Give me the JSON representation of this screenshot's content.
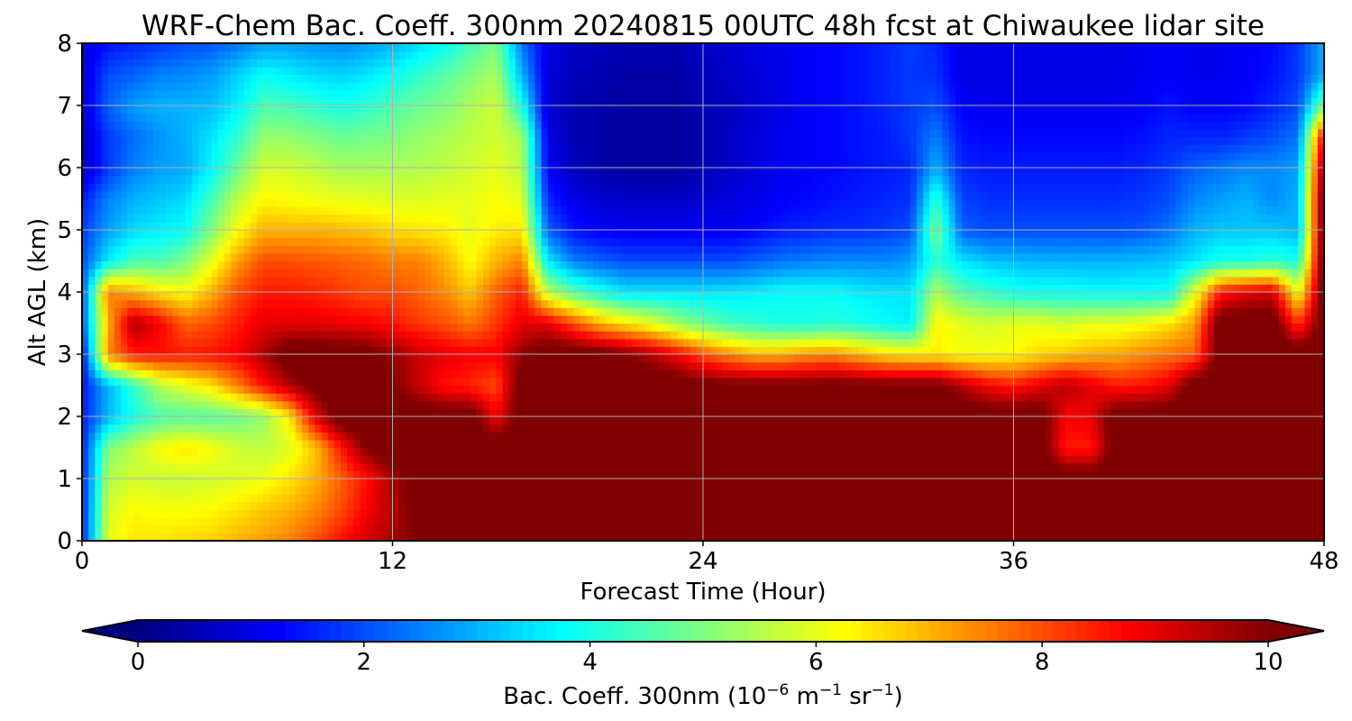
{
  "chart_data": {
    "type": "heatmap",
    "subtype": "filled-contour",
    "title": "WRF-Chem Bac. Coeff. 300nm  20240815 00UTC 48h fcst at Chiwaukee lidar site",
    "xlabel": "Forecast Time (Hour)",
    "ylabel": "Alt AGL (km)",
    "xlim": [
      0,
      48
    ],
    "ylim": [
      0,
      8
    ],
    "xticks": [
      "0",
      "12",
      "24",
      "36",
      "48"
    ],
    "yticks": [
      "0",
      "1",
      "2",
      "3",
      "4",
      "5",
      "6",
      "7",
      "8"
    ],
    "grid": true,
    "colormap": "jet",
    "colorbar": {
      "orientation": "horizontal",
      "placement": "bottom",
      "range": [
        0,
        10
      ],
      "extend": "both",
      "ticks": [
        "0",
        "2",
        "4",
        "6",
        "8",
        "10"
      ],
      "label_main": "Bac. Coeff. 300nm  (10",
      "label_exp1": "−6",
      "label_mid": " m",
      "label_exp2": "−1",
      "label_mid2": " sr",
      "label_exp3": "−1",
      "label_end": ")"
    },
    "x": [
      0,
      1,
      2,
      3,
      4,
      5,
      6,
      7,
      8,
      9,
      10,
      11,
      12,
      13,
      14,
      15,
      16,
      17,
      18,
      19,
      20,
      21,
      22,
      23,
      24,
      25,
      26,
      27,
      28,
      29,
      30,
      31,
      32,
      33,
      34,
      35,
      36,
      37,
      38,
      39,
      40,
      41,
      42,
      43,
      44,
      45,
      46,
      47,
      48
    ],
    "y": [
      0,
      0.5,
      1,
      1.5,
      2,
      2.5,
      3,
      3.5,
      4,
      4.5,
      5,
      5.5,
      6,
      6.5,
      7,
      7.5,
      8
    ],
    "values": [
      [
        1.5,
        6.0,
        6.5,
        6.5,
        6.6,
        6.7,
        7.0,
        7.2,
        7.5,
        8.0,
        8.6,
        9.2,
        9.6,
        10.0,
        10.5,
        10.5,
        10.5,
        10.5,
        10.5,
        10.5,
        10.5,
        10.5,
        10.5,
        10.5,
        10.5,
        10.5,
        10.5,
        10.5,
        10.5,
        10.5,
        10.5,
        10.5,
        10.5,
        10.5,
        10.5,
        10.5,
        10.5,
        10.5,
        10.5,
        10.5,
        10.5,
        10.5,
        10.5,
        10.5,
        10.5,
        10.5,
        10.5,
        10.5,
        10.5
      ],
      [
        1.5,
        5.8,
        6.3,
        6.2,
        6.2,
        6.3,
        6.5,
        6.8,
        7.0,
        7.4,
        8.0,
        8.8,
        9.5,
        10.2,
        10.5,
        10.5,
        10.5,
        10.5,
        10.5,
        10.5,
        10.5,
        10.5,
        10.5,
        10.5,
        10.5,
        10.5,
        10.5,
        10.5,
        10.5,
        10.5,
        10.5,
        10.5,
        10.5,
        10.5,
        10.5,
        10.5,
        10.5,
        10.5,
        10.5,
        10.5,
        10.5,
        10.5,
        10.5,
        10.5,
        10.5,
        10.5,
        10.5,
        10.5,
        10.5
      ],
      [
        1.5,
        5.5,
        5.8,
        5.7,
        5.7,
        5.8,
        5.9,
        6.1,
        6.5,
        7.0,
        7.8,
        8.6,
        9.6,
        10.3,
        10.5,
        10.5,
        10.5,
        10.5,
        10.5,
        10.5,
        10.5,
        10.5,
        10.5,
        10.5,
        10.5,
        10.5,
        10.5,
        10.5,
        10.5,
        10.5,
        10.5,
        10.5,
        10.5,
        10.5,
        10.5,
        10.5,
        10.5,
        10.5,
        10.5,
        10.5,
        10.5,
        10.5,
        10.5,
        10.5,
        10.5,
        10.5,
        10.5,
        10.5,
        10.5
      ],
      [
        1.5,
        5.0,
        5.6,
        6.2,
        6.5,
        6.2,
        5.8,
        5.6,
        5.9,
        6.8,
        8.5,
        10.0,
        10.5,
        10.5,
        10.5,
        10.5,
        10.5,
        10.5,
        10.5,
        10.5,
        10.5,
        10.5,
        10.5,
        10.5,
        10.5,
        10.5,
        10.5,
        10.5,
        10.5,
        10.5,
        10.5,
        10.5,
        10.5,
        10.5,
        10.5,
        10.5,
        10.5,
        10.5,
        8.5,
        8.5,
        10.5,
        10.5,
        10.5,
        10.5,
        10.5,
        10.5,
        10.5,
        10.5,
        10.5
      ],
      [
        1.5,
        3.0,
        4.0,
        4.5,
        4.6,
        4.6,
        4.8,
        5.2,
        6.4,
        9.0,
        10.5,
        10.5,
        10.5,
        10.5,
        10.5,
        10.5,
        8.8,
        10.5,
        10.5,
        10.5,
        10.5,
        10.5,
        10.5,
        10.5,
        10.5,
        10.5,
        10.5,
        10.5,
        10.5,
        10.5,
        10.5,
        10.5,
        10.5,
        10.5,
        10.5,
        10.5,
        10.5,
        10.5,
        8.8,
        9.0,
        10.5,
        10.5,
        10.5,
        10.5,
        10.5,
        10.5,
        10.5,
        10.5,
        10.5
      ],
      [
        1.4,
        3.0,
        4.2,
        5.5,
        6.0,
        6.5,
        7.5,
        8.6,
        9.5,
        10.2,
        10.5,
        10.5,
        10.0,
        9.3,
        8.6,
        8.4,
        8.0,
        10.5,
        10.5,
        10.5,
        10.5,
        10.5,
        10.5,
        10.5,
        10.3,
        10.2,
        10.2,
        10.2,
        10.2,
        10.3,
        10.2,
        10.2,
        10.2,
        10.2,
        9.5,
        8.8,
        8.5,
        9.0,
        9.5,
        9.0,
        8.5,
        8.6,
        9.0,
        10.5,
        10.5,
        10.5,
        10.5,
        10.5,
        10.5
      ],
      [
        1.2,
        7.4,
        8.5,
        8.6,
        8.5,
        8.6,
        8.8,
        9.6,
        10.5,
        10.5,
        10.5,
        10.3,
        9.8,
        9.3,
        9.0,
        8.8,
        8.8,
        9.8,
        10.5,
        10.5,
        10.4,
        10.0,
        9.5,
        8.8,
        8.0,
        7.4,
        7.0,
        7.0,
        7.3,
        7.4,
        7.0,
        6.6,
        6.4,
        6.4,
        6.2,
        6.2,
        6.3,
        6.6,
        6.8,
        7.0,
        7.1,
        7.4,
        7.6,
        7.8,
        10.5,
        10.5,
        10.5,
        10.5,
        10.5
      ],
      [
        2.0,
        7.0,
        9.6,
        8.8,
        7.8,
        8.0,
        8.5,
        9.0,
        9.0,
        9.0,
        8.9,
        8.8,
        8.6,
        8.2,
        8.0,
        7.6,
        8.2,
        9.0,
        9.0,
        8.0,
        7.0,
        6.5,
        6.0,
        5.3,
        4.8,
        4.4,
        4.2,
        4.0,
        4.0,
        4.1,
        4.0,
        3.8,
        3.6,
        6.3,
        6.0,
        5.8,
        6.0,
        6.0,
        5.8,
        6.0,
        6.0,
        6.2,
        6.5,
        7.2,
        10.5,
        10.5,
        10.5,
        8.2,
        10.5
      ],
      [
        2.0,
        7.5,
        7.0,
        6.5,
        6.2,
        7.0,
        8.0,
        8.5,
        8.5,
        8.4,
        8.2,
        8.0,
        8.0,
        7.8,
        7.4,
        6.8,
        7.8,
        8.5,
        5.6,
        4.6,
        4.0,
        3.5,
        3.5,
        3.5,
        3.5,
        3.5,
        3.6,
        3.8,
        3.8,
        3.8,
        3.6,
        3.5,
        3.5,
        5.5,
        4.6,
        4.3,
        4.0,
        3.9,
        3.9,
        3.8,
        3.8,
        3.8,
        3.8,
        6.0,
        8.5,
        9.0,
        9.2,
        6.0,
        10.5
      ],
      [
        2.0,
        3.6,
        4.5,
        4.5,
        5.0,
        6.0,
        7.2,
        8.0,
        8.0,
        7.9,
        7.8,
        7.7,
        7.5,
        7.5,
        7.0,
        6.2,
        7.0,
        7.5,
        3.6,
        2.5,
        2.2,
        2.0,
        2.0,
        2.0,
        2.0,
        2.0,
        2.2,
        2.4,
        2.5,
        2.6,
        2.6,
        2.6,
        2.8,
        4.2,
        3.5,
        3.2,
        3.1,
        3.0,
        3.0,
        3.0,
        3.0,
        3.1,
        3.2,
        3.5,
        4.0,
        4.0,
        4.2,
        4.0,
        10.5
      ],
      [
        1.8,
        2.8,
        3.4,
        3.6,
        3.8,
        5.0,
        6.2,
        7.0,
        7.0,
        7.0,
        6.9,
        6.8,
        6.6,
        6.5,
        6.4,
        6.0,
        6.4,
        6.5,
        2.2,
        1.4,
        1.2,
        1.1,
        1.1,
        1.1,
        1.1,
        1.1,
        1.3,
        1.5,
        1.6,
        1.7,
        1.7,
        1.8,
        2.0,
        5.0,
        2.2,
        2.0,
        2.0,
        2.0,
        2.0,
        2.0,
        2.0,
        2.1,
        2.4,
        3.0,
        3.2,
        3.2,
        3.2,
        3.0,
        10.5
      ],
      [
        1.5,
        2.5,
        3.0,
        3.2,
        3.4,
        4.4,
        5.6,
        6.3,
        6.2,
        6.1,
        6.0,
        6.0,
        5.9,
        5.9,
        6.0,
        6.0,
        6.2,
        6.0,
        1.6,
        1.0,
        0.8,
        0.7,
        0.7,
        0.7,
        0.8,
        0.9,
        1.0,
        1.2,
        1.3,
        1.4,
        1.5,
        1.6,
        1.7,
        4.2,
        1.9,
        1.7,
        1.7,
        1.7,
        1.7,
        1.7,
        1.7,
        1.8,
        2.0,
        2.6,
        2.8,
        3.0,
        2.6,
        3.0,
        10.5
      ],
      [
        0.6,
        1.8,
        2.5,
        2.8,
        2.9,
        3.7,
        4.8,
        5.8,
        5.8,
        5.6,
        5.4,
        5.4,
        5.4,
        5.5,
        5.6,
        5.8,
        6.0,
        5.6,
        1.2,
        0.6,
        0.4,
        0.3,
        0.3,
        0.3,
        0.5,
        0.7,
        0.9,
        1.1,
        1.2,
        1.3,
        1.4,
        1.5,
        1.6,
        3.0,
        1.6,
        1.5,
        1.5,
        1.5,
        1.5,
        1.5,
        1.5,
        1.6,
        1.8,
        2.2,
        2.4,
        2.6,
        2.6,
        2.8,
        10.0
      ],
      [
        0.6,
        1.8,
        2.3,
        2.7,
        3.0,
        3.5,
        4.2,
        5.2,
        5.2,
        5.0,
        4.8,
        4.9,
        5.0,
        5.2,
        5.4,
        5.6,
        5.8,
        5.4,
        1.0,
        0.5,
        0.4,
        0.3,
        0.3,
        0.3,
        0.5,
        0.7,
        0.9,
        1.1,
        1.2,
        1.3,
        1.4,
        1.5,
        1.8,
        2.5,
        1.4,
        1.3,
        1.3,
        1.3,
        1.3,
        1.3,
        1.3,
        1.4,
        1.6,
        1.6,
        1.6,
        1.8,
        2.0,
        2.4,
        9.0
      ],
      [
        0.8,
        2.2,
        2.8,
        3.0,
        3.0,
        3.1,
        3.6,
        4.5,
        4.4,
        4.2,
        4.0,
        4.2,
        4.5,
        4.8,
        5.0,
        5.4,
        5.8,
        4.0,
        0.8,
        0.5,
        0.4,
        0.3,
        0.3,
        0.3,
        0.5,
        0.6,
        0.8,
        1.0,
        1.2,
        1.3,
        1.4,
        1.6,
        1.8,
        2.0,
        1.2,
        1.1,
        1.1,
        1.1,
        1.1,
        1.1,
        1.1,
        1.2,
        1.4,
        1.2,
        1.2,
        1.3,
        1.6,
        2.0,
        5.0
      ],
      [
        0.8,
        2.0,
        2.2,
        2.5,
        2.6,
        2.8,
        3.3,
        3.8,
        3.6,
        3.4,
        3.3,
        3.5,
        3.8,
        4.2,
        4.6,
        5.0,
        5.4,
        3.0,
        0.9,
        0.6,
        0.5,
        0.4,
        0.4,
        0.4,
        0.6,
        0.7,
        0.9,
        1.0,
        1.2,
        1.3,
        1.4,
        1.6,
        1.8,
        1.7,
        1.0,
        1.0,
        1.0,
        1.0,
        1.0,
        1.0,
        1.0,
        1.1,
        1.2,
        1.1,
        1.1,
        1.2,
        1.4,
        1.8,
        3.0
      ],
      [
        0.8,
        1.4,
        1.6,
        1.8,
        2.0,
        2.1,
        2.4,
        2.8,
        2.8,
        2.7,
        2.6,
        2.8,
        3.0,
        3.4,
        3.8,
        4.4,
        5.0,
        2.4,
        1.0,
        0.7,
        0.6,
        0.5,
        0.5,
        0.5,
        0.7,
        0.8,
        1.0,
        1.1,
        1.2,
        1.3,
        1.4,
        1.6,
        1.8,
        1.6,
        1.0,
        1.0,
        1.0,
        1.0,
        1.0,
        1.0,
        1.0,
        1.1,
        1.2,
        1.1,
        1.1,
        1.2,
        1.3,
        1.8,
        3.0
      ]
    ]
  }
}
